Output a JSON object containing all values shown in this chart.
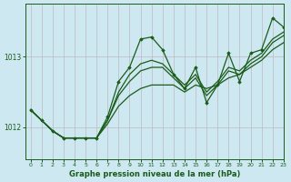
{
  "title": "Graphe pression niveau de la mer (hPa)",
  "bg_color": "#cde8f0",
  "grid_color_v": "#c0b8c0",
  "grid_color_h": "#c0b8c0",
  "line_color": "#1a5c1a",
  "xlim": [
    -0.5,
    23
  ],
  "ylim": [
    1011.55,
    1013.75
  ],
  "yticks": [
    1012,
    1013
  ],
  "xticks": [
    0,
    1,
    2,
    3,
    4,
    5,
    6,
    7,
    8,
    9,
    10,
    11,
    12,
    13,
    14,
    15,
    16,
    17,
    18,
    19,
    20,
    21,
    22,
    23
  ],
  "series": [
    {
      "x": [
        0,
        1,
        2,
        3,
        4,
        5,
        6,
        7,
        8,
        9,
        10,
        11,
        12,
        13,
        14,
        15,
        16,
        17,
        18,
        19,
        20,
        21,
        22,
        23
      ],
      "y": [
        1012.25,
        1012.1,
        1011.95,
        1011.85,
        1011.85,
        1011.85,
        1011.85,
        1012.05,
        1012.3,
        1012.45,
        1012.55,
        1012.6,
        1012.6,
        1012.6,
        1012.5,
        1012.6,
        1012.55,
        1012.6,
        1012.7,
        1012.75,
        1012.85,
        1012.95,
        1013.1,
        1013.2
      ],
      "marker": null,
      "lw": 0.9
    },
    {
      "x": [
        0,
        1,
        2,
        3,
        4,
        5,
        6,
        7,
        8,
        9,
        10,
        11,
        12,
        13,
        14,
        15,
        16,
        17,
        18,
        19,
        20,
        21,
        22,
        23
      ],
      "y": [
        1012.25,
        1012.1,
        1011.95,
        1011.85,
        1011.85,
        1011.85,
        1011.85,
        1012.15,
        1012.65,
        1012.85,
        1013.25,
        1013.28,
        1013.1,
        1012.75,
        1012.55,
        1012.85,
        1012.35,
        1012.6,
        1013.05,
        1012.65,
        1013.05,
        1013.1,
        1013.55,
        1013.42
      ],
      "marker": "D",
      "lw": 0.9
    },
    {
      "x": [
        0,
        1,
        2,
        3,
        4,
        5,
        6,
        7,
        8,
        9,
        10,
        11,
        12,
        13,
        14,
        15,
        16,
        17,
        18,
        19,
        20,
        21,
        22,
        23
      ],
      "y": [
        1012.25,
        1012.1,
        1011.95,
        1011.85,
        1011.85,
        1011.85,
        1011.85,
        1012.1,
        1012.45,
        1012.65,
        1012.8,
        1012.85,
        1012.85,
        1012.7,
        1012.55,
        1012.7,
        1012.45,
        1012.6,
        1012.8,
        1012.75,
        1012.9,
        1013.0,
        1013.2,
        1013.3
      ],
      "marker": null,
      "lw": 0.9
    },
    {
      "x": [
        0,
        1,
        2,
        3,
        4,
        5,
        6,
        7,
        8,
        9,
        10,
        11,
        12,
        13,
        14,
        15,
        16,
        17,
        18,
        19,
        20,
        21,
        22,
        23
      ],
      "y": [
        1012.25,
        1012.1,
        1011.95,
        1011.85,
        1011.85,
        1011.85,
        1011.85,
        1012.1,
        1012.5,
        1012.75,
        1012.9,
        1012.95,
        1012.9,
        1012.75,
        1012.6,
        1012.75,
        1012.5,
        1012.65,
        1012.85,
        1012.8,
        1012.95,
        1013.05,
        1013.25,
        1013.35
      ],
      "marker": null,
      "lw": 0.9
    }
  ]
}
